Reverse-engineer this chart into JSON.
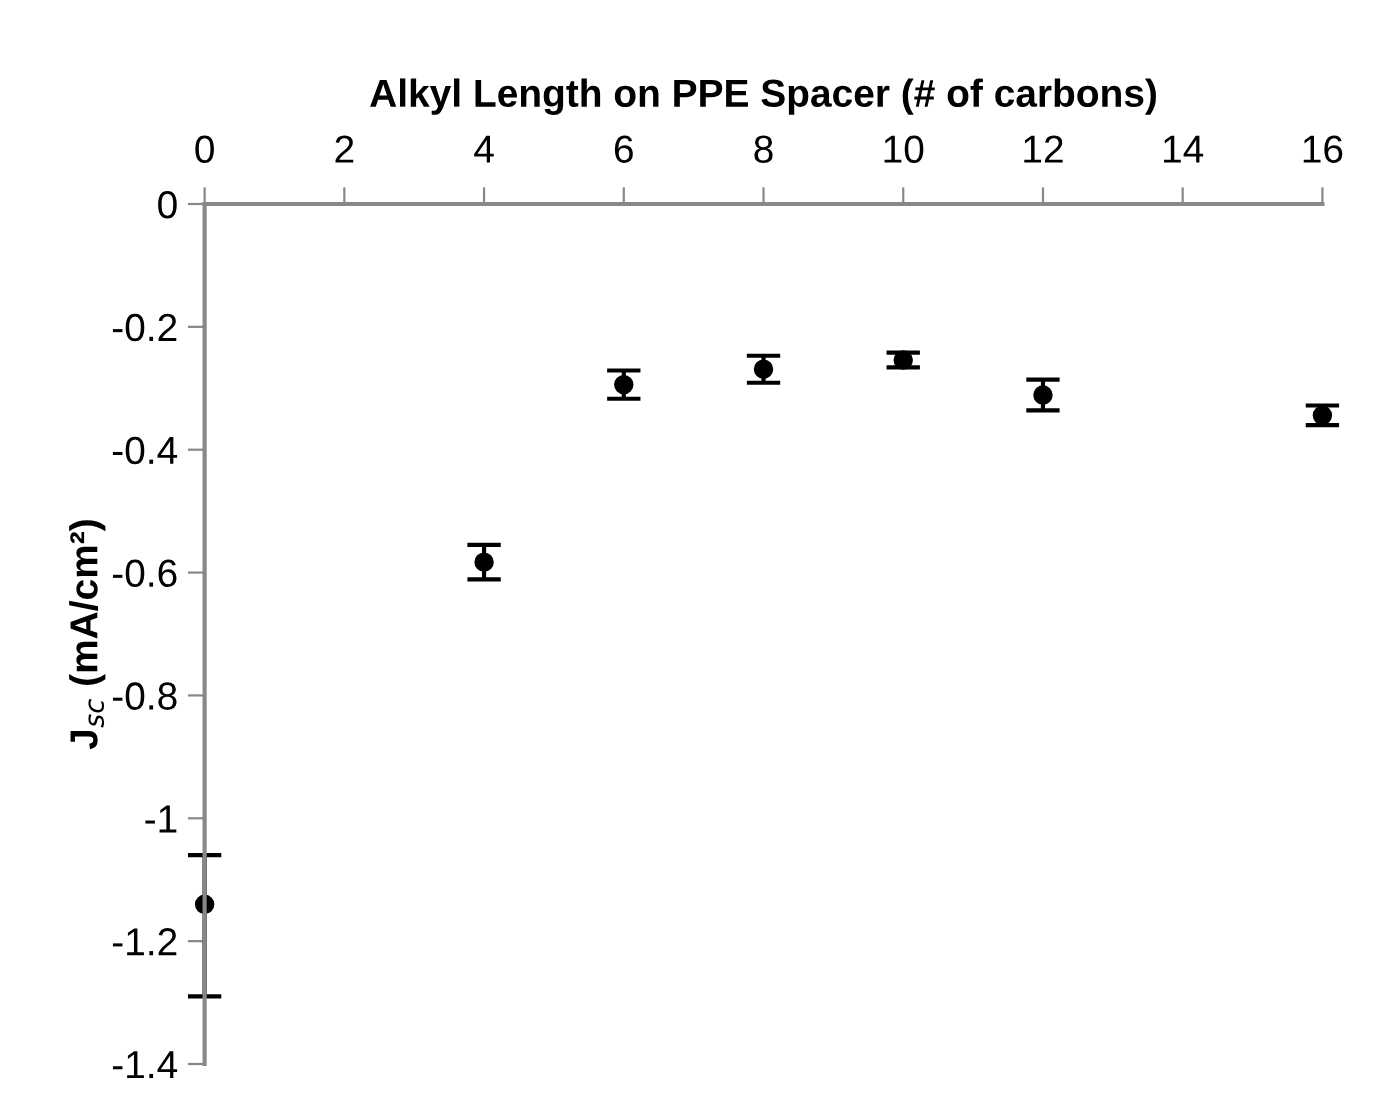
{
  "chart_data": {
    "type": "scatter",
    "xlabel": "Alkyl Length on PPE Spacer (# of carbons)",
    "ylabel": "J$_{sc}$ (mA/cm²)",
    "x": [
      0,
      4,
      6,
      8,
      10,
      12,
      16
    ],
    "values": [
      -1.14,
      -0.583,
      -0.294,
      -0.269,
      -0.254,
      -0.311,
      -0.344
    ],
    "errors": [
      [
        -1.29,
        -1.06
      ],
      0.028,
      0.023,
      0.022,
      0.012,
      0.025,
      0.016
    ],
    "color": "#000000",
    "marker": "circle",
    "xlim": [
      0,
      16
    ],
    "xticks": [
      0,
      2,
      4,
      6,
      8,
      10,
      12,
      14,
      16
    ],
    "ylim": [
      -1.4,
      0
    ],
    "yticks": [
      -1.4,
      -1.2,
      -1,
      -0.8,
      -0.6,
      -0.4,
      -0.2,
      0
    ],
    "grid": false,
    "legend": false
  }
}
